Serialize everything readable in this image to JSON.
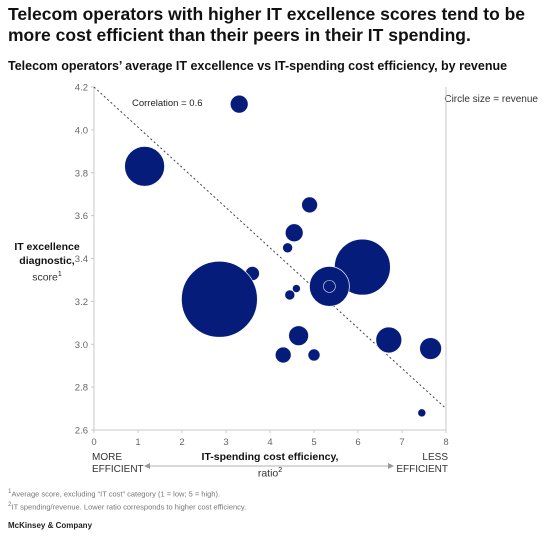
{
  "header": {
    "headline": "Telecom operators with higher IT excellence scores tend to be more cost efficient than their peers in their IT spending.",
    "subtitle": "Telecom operators’ average IT excellence vs IT-spending cost efficiency, by revenue"
  },
  "side_note": "Circle size = revenue",
  "axis_labels": {
    "y_bold": "IT excellence diagnostic,",
    "y_rest": "score",
    "y_sup": "1",
    "x_bold": "IT-spending cost efficiency,",
    "x_rest": "ratio",
    "x_sup": "2",
    "left_end": "MORE EFFICIENT",
    "right_end": "LESS EFFICIENT"
  },
  "footnotes": {
    "n1_sup": "1",
    "n1": "Average score, excluding “IT cost” category (1 = low; 5 = high).",
    "n2_sup": "2",
    "n2": "IT spending/revenue. Lower ratio corresponds to higher cost efficiency."
  },
  "brand": "McKinsey & Company",
  "colors": {
    "bubble": "#051c7a",
    "axis": "#c8c8c8",
    "trend": "#444444",
    "tick": "#666666"
  },
  "chart_data": {
    "type": "scatter",
    "bubble": true,
    "xlim": [
      0,
      8
    ],
    "ylim": [
      2.6,
      4.2
    ],
    "x_ticks": [
      0,
      1,
      2,
      3,
      4,
      5,
      6,
      7,
      8
    ],
    "y_ticks": [
      "2.6",
      "2.8",
      "3.0",
      "3.2",
      "3.4",
      "3.6",
      "3.8",
      "4.0",
      "4.2"
    ],
    "annotation": "Correlation = 0.6",
    "trendline": {
      "from": [
        0,
        4.2
      ],
      "to": [
        8,
        2.7
      ]
    },
    "points": [
      {
        "x": 3.3,
        "y": 4.12,
        "size": 9
      },
      {
        "x": 1.15,
        "y": 3.83,
        "size": 20
      },
      {
        "x": 4.9,
        "y": 3.65,
        "size": 8
      },
      {
        "x": 4.55,
        "y": 3.52,
        "size": 9
      },
      {
        "x": 4.4,
        "y": 3.45,
        "size": 5
      },
      {
        "x": 6.1,
        "y": 3.36,
        "size": 28
      },
      {
        "x": 3.6,
        "y": 3.33,
        "size": 7
      },
      {
        "x": 4.6,
        "y": 3.26,
        "size": 4
      },
      {
        "x": 5.35,
        "y": 3.27,
        "size": 20
      },
      {
        "x": 5.35,
        "y": 3.27,
        "size": 6
      },
      {
        "x": 4.45,
        "y": 3.23,
        "size": 5
      },
      {
        "x": 2.85,
        "y": 3.21,
        "size": 38
      },
      {
        "x": 4.65,
        "y": 3.04,
        "size": 10
      },
      {
        "x": 6.7,
        "y": 3.02,
        "size": 13
      },
      {
        "x": 7.65,
        "y": 2.98,
        "size": 11
      },
      {
        "x": 4.3,
        "y": 2.95,
        "size": 8
      },
      {
        "x": 5.0,
        "y": 2.95,
        "size": 6
      },
      {
        "x": 7.45,
        "y": 2.68,
        "size": 4
      }
    ]
  }
}
